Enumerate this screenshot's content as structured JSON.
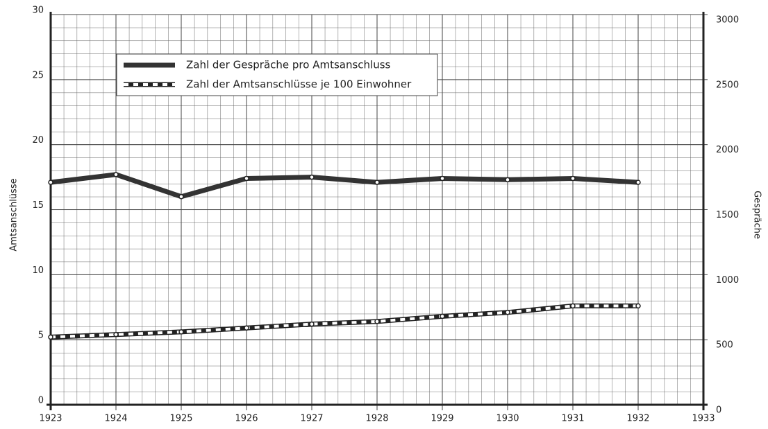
{
  "chart_data": {
    "type": "line",
    "y_label": "Amtsanschlüsse",
    "y2_label": "Gespräche",
    "x": [
      1923,
      1924,
      1925,
      1926,
      1927,
      1928,
      1929,
      1930,
      1931,
      1932
    ],
    "xlim": [
      1923,
      1933
    ],
    "xticks": [
      1923,
      1924,
      1925,
      1926,
      1927,
      1928,
      1929,
      1930,
      1931,
      1932,
      1933
    ],
    "ylim": [
      0,
      30
    ],
    "yticks": [
      0,
      5,
      10,
      15,
      20,
      25,
      30
    ],
    "y2lim": [
      0,
      3000
    ],
    "y2ticks": [
      0,
      500,
      1000,
      1500,
      2000,
      2500,
      3000
    ],
    "grid": true,
    "legend": "upper left",
    "series": [
      {
        "name": "Zahl der Gespräche pro Amtsanschluss",
        "color": "#333333",
        "style": "solid",
        "axis": "y2",
        "values": [
          1710,
          1770,
          1600,
          1740,
          1750,
          1710,
          1740,
          1730,
          1740,
          1710
        ]
      },
      {
        "name": "Zahl der Amtsanschlüsse je 100 Einwohner",
        "color": "#222222",
        "style": "hatched",
        "axis": "y",
        "values": [
          5.2,
          5.4,
          5.6,
          5.9,
          6.2,
          6.4,
          6.8,
          7.1,
          7.6,
          7.6
        ]
      }
    ]
  }
}
